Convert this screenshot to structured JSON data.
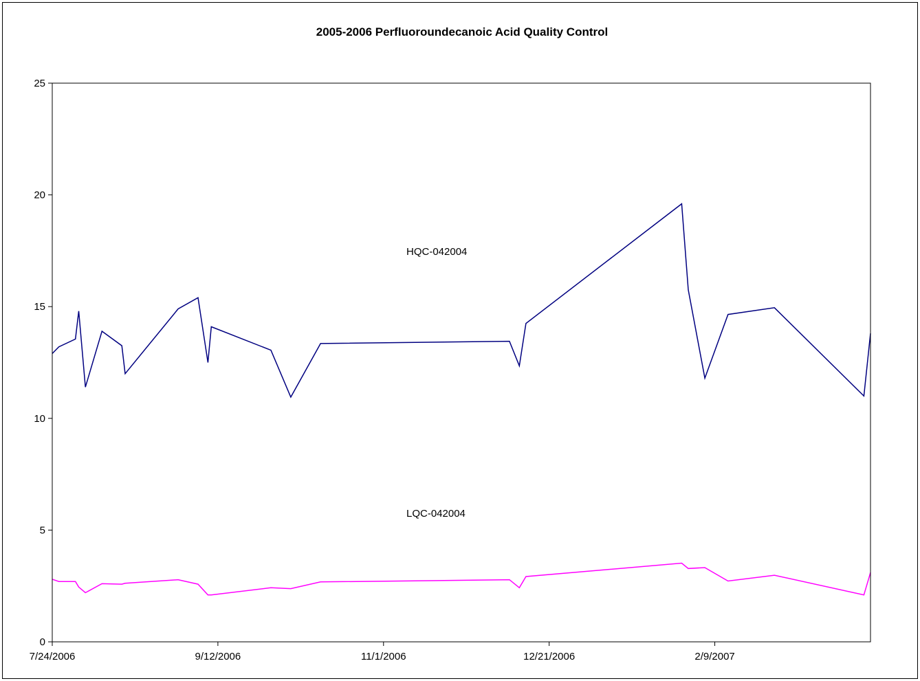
{
  "chart_data": {
    "type": "line",
    "title": "2005-2006 Perfluoroundecanoic Acid Quality Control",
    "xlabel": "",
    "ylabel": "",
    "ylim": [
      0,
      25
    ],
    "yticks": [
      0,
      5,
      10,
      15,
      20,
      25
    ],
    "ytick_labels": [
      "0",
      "5",
      "10",
      "15",
      "20",
      "25"
    ],
    "xlim": [
      "2006-07-24",
      "2007-03-28"
    ],
    "xticks": [
      "2006-07-24",
      "2006-09-12",
      "2006-11-01",
      "2006-12-21",
      "2007-02-09"
    ],
    "xtick_labels": [
      "7/24/2006",
      "9/12/2006",
      "11/1/2006",
      "12/21/2006",
      "2/9/2007"
    ],
    "grid": false,
    "legend": "none",
    "series": [
      {
        "name": "HQC-042004",
        "color": "#000080",
        "x": [
          "2006-07-24",
          "2006-07-26",
          "2006-07-31",
          "2006-08-01",
          "2006-08-03",
          "2006-08-08",
          "2006-08-14",
          "2006-08-15",
          "2006-08-31",
          "2006-09-06",
          "2006-09-09",
          "2006-09-10",
          "2006-09-28",
          "2006-10-04",
          "2006-10-13",
          "2006-12-09",
          "2006-12-12",
          "2006-12-14",
          "2007-01-30",
          "2007-02-01",
          "2007-02-06",
          "2007-02-13",
          "2007-02-27",
          "2007-03-26",
          "2007-03-28"
        ],
        "values": [
          12.9,
          13.2,
          13.55,
          14.8,
          11.4,
          13.9,
          13.25,
          12.0,
          14.9,
          15.4,
          12.5,
          14.1,
          13.05,
          10.95,
          13.35,
          13.45,
          12.35,
          14.25,
          19.6,
          15.75,
          11.8,
          14.65,
          14.95,
          11.0,
          13.8
        ],
        "label": "HQC-042004"
      },
      {
        "name": "LQC-042004",
        "color": "#FF00FF",
        "x": [
          "2006-07-24",
          "2006-07-26",
          "2006-07-31",
          "2006-08-01",
          "2006-08-03",
          "2006-08-08",
          "2006-08-14",
          "2006-08-15",
          "2006-08-31",
          "2006-09-06",
          "2006-09-09",
          "2006-09-10",
          "2006-09-28",
          "2006-10-04",
          "2006-10-13",
          "2006-12-09",
          "2006-12-12",
          "2006-12-14",
          "2007-01-30",
          "2007-02-01",
          "2007-02-06",
          "2007-02-13",
          "2007-02-27",
          "2007-03-26",
          "2007-03-28"
        ],
        "values": [
          2.8,
          2.7,
          2.7,
          2.45,
          2.2,
          2.6,
          2.58,
          2.62,
          2.78,
          2.58,
          2.1,
          2.1,
          2.42,
          2.38,
          2.68,
          2.78,
          2.42,
          2.92,
          3.52,
          3.28,
          3.32,
          2.72,
          2.98,
          2.1,
          3.1
        ],
        "label": "LQC-042004"
      }
    ]
  }
}
